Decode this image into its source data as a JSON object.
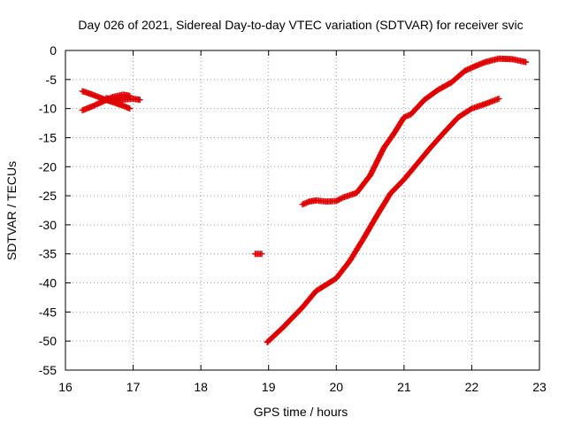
{
  "chart_data": {
    "type": "scatter",
    "title": "Day 026 of 2021, Sidereal Day-to-day VTEC variation (SDTVAR) for receiver svic",
    "xlabel": "GPS time / hours",
    "ylabel": "SDTVAR / TECUs",
    "xlim": [
      16,
      23
    ],
    "ylim": [
      -55,
      0
    ],
    "xticks": [
      16,
      17,
      18,
      19,
      20,
      21,
      22,
      23
    ],
    "yticks": [
      0,
      -5,
      -10,
      -15,
      -20,
      -25,
      -30,
      -35,
      -40,
      -45,
      -50,
      -55
    ],
    "grid": true,
    "marker": "plus",
    "color": "#e00000",
    "series": [
      {
        "x": [
          16.25,
          16.4,
          16.55,
          16.7,
          16.85,
          16.95
        ],
        "y": [
          -7.0,
          -7.6,
          -8.3,
          -8.9,
          -9.5,
          -10.0
        ]
      },
      {
        "x": [
          16.25,
          16.4,
          16.55,
          16.7,
          16.85,
          16.95
        ],
        "y": [
          -10.3,
          -9.6,
          -8.8,
          -8.0,
          -7.6,
          -7.8
        ]
      },
      {
        "x": [
          16.6,
          16.8,
          17.0,
          17.1
        ],
        "y": [
          -8.2,
          -8.5,
          -8.3,
          -8.5
        ]
      },
      {
        "x": [
          18.8,
          18.9
        ],
        "y": [
          -35.0,
          -35.0
        ]
      },
      {
        "x": [
          18.98,
          19.2,
          19.5,
          19.7,
          20.0,
          20.2,
          20.4,
          20.6,
          20.8,
          21.0,
          21.2,
          21.4,
          21.6,
          21.8,
          22.0,
          22.2,
          22.4
        ],
        "y": [
          -50.2,
          -47.8,
          -44.2,
          -41.4,
          -39.2,
          -36.2,
          -32.4,
          -28.4,
          -24.6,
          -22.2,
          -19.4,
          -16.6,
          -14.0,
          -11.5,
          -10.0,
          -9.2,
          -8.3
        ]
      },
      {
        "x": [
          19.5,
          19.6,
          19.7,
          19.85,
          20.0,
          20.1,
          20.3,
          20.5,
          20.7,
          20.85,
          21.0,
          21.1,
          21.3,
          21.5,
          21.7,
          21.9,
          22.05,
          22.2,
          22.4,
          22.6,
          22.8
        ],
        "y": [
          -26.5,
          -26.0,
          -25.8,
          -26.0,
          -25.9,
          -25.3,
          -24.5,
          -21.5,
          -16.8,
          -14.3,
          -11.5,
          -11.0,
          -8.5,
          -6.8,
          -5.5,
          -3.5,
          -2.7,
          -2.0,
          -1.4,
          -1.5,
          -2.0
        ]
      }
    ]
  }
}
